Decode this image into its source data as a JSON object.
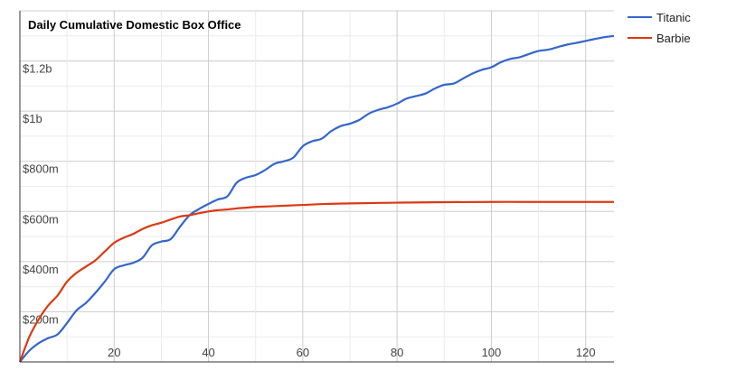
{
  "chart_data": {
    "type": "line",
    "title": "Daily Cumulative Domestic Box Office",
    "xlabel": "",
    "ylabel": "",
    "xlim": [
      0,
      126
    ],
    "ylim": [
      0,
      1400
    ],
    "x_ticks": [
      20,
      40,
      60,
      80,
      100,
      120
    ],
    "y_ticks": [
      {
        "value": 200,
        "label": "$200m"
      },
      {
        "value": 400,
        "label": "$400m"
      },
      {
        "value": 600,
        "label": "$600m"
      },
      {
        "value": 800,
        "label": "$800m"
      },
      {
        "value": 1000,
        "label": "$1b"
      },
      {
        "value": 1200,
        "label": "$1.2b"
      }
    ],
    "grid": true,
    "legend_position": "top-right",
    "series": [
      {
        "name": "Titanic",
        "color": "#3366cc",
        "points": [
          [
            0,
            0
          ],
          [
            2,
            45
          ],
          [
            4,
            75
          ],
          [
            6,
            95
          ],
          [
            8,
            110
          ],
          [
            10,
            155
          ],
          [
            12,
            205
          ],
          [
            14,
            235
          ],
          [
            16,
            275
          ],
          [
            18,
            320
          ],
          [
            20,
            370
          ],
          [
            22,
            385
          ],
          [
            24,
            395
          ],
          [
            26,
            415
          ],
          [
            28,
            465
          ],
          [
            30,
            480
          ],
          [
            32,
            490
          ],
          [
            34,
            540
          ],
          [
            36,
            585
          ],
          [
            38,
            610
          ],
          [
            40,
            630
          ],
          [
            42,
            648
          ],
          [
            44,
            660
          ],
          [
            46,
            715
          ],
          [
            48,
            735
          ],
          [
            50,
            745
          ],
          [
            52,
            765
          ],
          [
            54,
            790
          ],
          [
            56,
            800
          ],
          [
            58,
            815
          ],
          [
            60,
            860
          ],
          [
            62,
            880
          ],
          [
            64,
            890
          ],
          [
            66,
            920
          ],
          [
            68,
            940
          ],
          [
            70,
            950
          ],
          [
            72,
            965
          ],
          [
            74,
            990
          ],
          [
            76,
            1005
          ],
          [
            78,
            1015
          ],
          [
            80,
            1030
          ],
          [
            82,
            1050
          ],
          [
            84,
            1060
          ],
          [
            86,
            1070
          ],
          [
            88,
            1090
          ],
          [
            90,
            1105
          ],
          [
            92,
            1110
          ],
          [
            94,
            1130
          ],
          [
            96,
            1150
          ],
          [
            98,
            1165
          ],
          [
            100,
            1175
          ],
          [
            102,
            1195
          ],
          [
            104,
            1208
          ],
          [
            106,
            1215
          ],
          [
            108,
            1228
          ],
          [
            110,
            1240
          ],
          [
            112,
            1245
          ],
          [
            114,
            1255
          ],
          [
            116,
            1265
          ],
          [
            118,
            1272
          ],
          [
            120,
            1280
          ],
          [
            122,
            1288
          ],
          [
            124,
            1295
          ],
          [
            126,
            1300
          ]
        ]
      },
      {
        "name": "Barbie",
        "color": "#dc3912",
        "points": [
          [
            0,
            0
          ],
          [
            2,
            100
          ],
          [
            4,
            170
          ],
          [
            6,
            225
          ],
          [
            8,
            265
          ],
          [
            10,
            320
          ],
          [
            12,
            355
          ],
          [
            14,
            380
          ],
          [
            16,
            405
          ],
          [
            18,
            440
          ],
          [
            20,
            475
          ],
          [
            22,
            495
          ],
          [
            24,
            510
          ],
          [
            26,
            530
          ],
          [
            28,
            545
          ],
          [
            30,
            555
          ],
          [
            32,
            568
          ],
          [
            34,
            580
          ],
          [
            36,
            585
          ],
          [
            38,
            593
          ],
          [
            40,
            600
          ],
          [
            42,
            605
          ],
          [
            44,
            608
          ],
          [
            46,
            612
          ],
          [
            48,
            615
          ],
          [
            50,
            618
          ],
          [
            55,
            622
          ],
          [
            60,
            626
          ],
          [
            65,
            630
          ],
          [
            70,
            632
          ],
          [
            80,
            635
          ],
          [
            90,
            637
          ],
          [
            100,
            638
          ],
          [
            110,
            638
          ],
          [
            120,
            638
          ],
          [
            126,
            638
          ]
        ]
      }
    ]
  }
}
